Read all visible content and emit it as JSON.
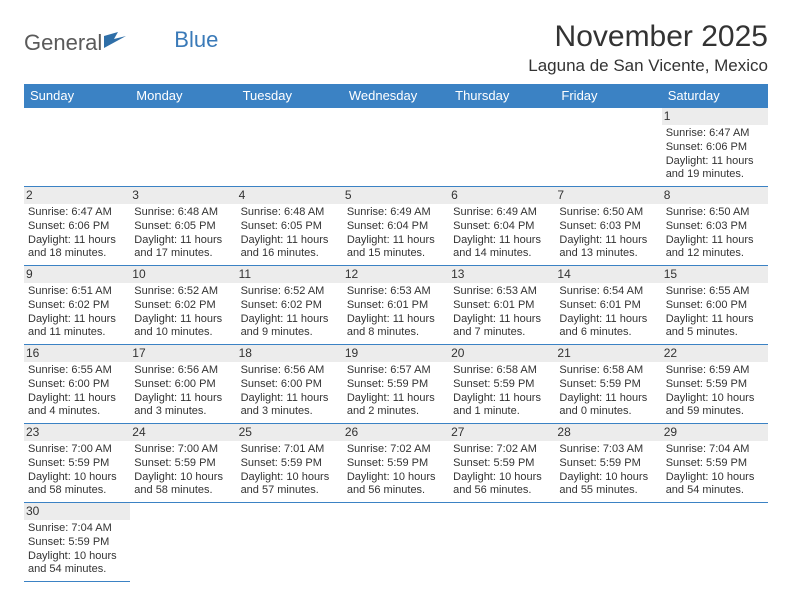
{
  "logo": {
    "text1": "General",
    "text2": "Blue"
  },
  "title": "November 2025",
  "location": "Laguna de San Vicente, Mexico",
  "colors": {
    "header_bg": "#3b82c4",
    "header_text": "#ffffff",
    "border": "#3b82c4",
    "daynum_bg": "#ececec",
    "logo_gray": "#5a5a5a",
    "logo_blue": "#3a7ab8"
  },
  "weekdays": [
    "Sunday",
    "Monday",
    "Tuesday",
    "Wednesday",
    "Thursday",
    "Friday",
    "Saturday"
  ],
  "weeks": [
    [
      null,
      null,
      null,
      null,
      null,
      null,
      {
        "n": "1",
        "sr": "Sunrise: 6:47 AM",
        "ss": "Sunset: 6:06 PM",
        "d1": "Daylight: 11 hours",
        "d2": "and 19 minutes."
      }
    ],
    [
      {
        "n": "2",
        "sr": "Sunrise: 6:47 AM",
        "ss": "Sunset: 6:06 PM",
        "d1": "Daylight: 11 hours",
        "d2": "and 18 minutes."
      },
      {
        "n": "3",
        "sr": "Sunrise: 6:48 AM",
        "ss": "Sunset: 6:05 PM",
        "d1": "Daylight: 11 hours",
        "d2": "and 17 minutes."
      },
      {
        "n": "4",
        "sr": "Sunrise: 6:48 AM",
        "ss": "Sunset: 6:05 PM",
        "d1": "Daylight: 11 hours",
        "d2": "and 16 minutes."
      },
      {
        "n": "5",
        "sr": "Sunrise: 6:49 AM",
        "ss": "Sunset: 6:04 PM",
        "d1": "Daylight: 11 hours",
        "d2": "and 15 minutes."
      },
      {
        "n": "6",
        "sr": "Sunrise: 6:49 AM",
        "ss": "Sunset: 6:04 PM",
        "d1": "Daylight: 11 hours",
        "d2": "and 14 minutes."
      },
      {
        "n": "7",
        "sr": "Sunrise: 6:50 AM",
        "ss": "Sunset: 6:03 PM",
        "d1": "Daylight: 11 hours",
        "d2": "and 13 minutes."
      },
      {
        "n": "8",
        "sr": "Sunrise: 6:50 AM",
        "ss": "Sunset: 6:03 PM",
        "d1": "Daylight: 11 hours",
        "d2": "and 12 minutes."
      }
    ],
    [
      {
        "n": "9",
        "sr": "Sunrise: 6:51 AM",
        "ss": "Sunset: 6:02 PM",
        "d1": "Daylight: 11 hours",
        "d2": "and 11 minutes."
      },
      {
        "n": "10",
        "sr": "Sunrise: 6:52 AM",
        "ss": "Sunset: 6:02 PM",
        "d1": "Daylight: 11 hours",
        "d2": "and 10 minutes."
      },
      {
        "n": "11",
        "sr": "Sunrise: 6:52 AM",
        "ss": "Sunset: 6:02 PM",
        "d1": "Daylight: 11 hours",
        "d2": "and 9 minutes."
      },
      {
        "n": "12",
        "sr": "Sunrise: 6:53 AM",
        "ss": "Sunset: 6:01 PM",
        "d1": "Daylight: 11 hours",
        "d2": "and 8 minutes."
      },
      {
        "n": "13",
        "sr": "Sunrise: 6:53 AM",
        "ss": "Sunset: 6:01 PM",
        "d1": "Daylight: 11 hours",
        "d2": "and 7 minutes."
      },
      {
        "n": "14",
        "sr": "Sunrise: 6:54 AM",
        "ss": "Sunset: 6:01 PM",
        "d1": "Daylight: 11 hours",
        "d2": "and 6 minutes."
      },
      {
        "n": "15",
        "sr": "Sunrise: 6:55 AM",
        "ss": "Sunset: 6:00 PM",
        "d1": "Daylight: 11 hours",
        "d2": "and 5 minutes."
      }
    ],
    [
      {
        "n": "16",
        "sr": "Sunrise: 6:55 AM",
        "ss": "Sunset: 6:00 PM",
        "d1": "Daylight: 11 hours",
        "d2": "and 4 minutes."
      },
      {
        "n": "17",
        "sr": "Sunrise: 6:56 AM",
        "ss": "Sunset: 6:00 PM",
        "d1": "Daylight: 11 hours",
        "d2": "and 3 minutes."
      },
      {
        "n": "18",
        "sr": "Sunrise: 6:56 AM",
        "ss": "Sunset: 6:00 PM",
        "d1": "Daylight: 11 hours",
        "d2": "and 3 minutes."
      },
      {
        "n": "19",
        "sr": "Sunrise: 6:57 AM",
        "ss": "Sunset: 5:59 PM",
        "d1": "Daylight: 11 hours",
        "d2": "and 2 minutes."
      },
      {
        "n": "20",
        "sr": "Sunrise: 6:58 AM",
        "ss": "Sunset: 5:59 PM",
        "d1": "Daylight: 11 hours",
        "d2": "and 1 minute."
      },
      {
        "n": "21",
        "sr": "Sunrise: 6:58 AM",
        "ss": "Sunset: 5:59 PM",
        "d1": "Daylight: 11 hours",
        "d2": "and 0 minutes."
      },
      {
        "n": "22",
        "sr": "Sunrise: 6:59 AM",
        "ss": "Sunset: 5:59 PM",
        "d1": "Daylight: 10 hours",
        "d2": "and 59 minutes."
      }
    ],
    [
      {
        "n": "23",
        "sr": "Sunrise: 7:00 AM",
        "ss": "Sunset: 5:59 PM",
        "d1": "Daylight: 10 hours",
        "d2": "and 58 minutes."
      },
      {
        "n": "24",
        "sr": "Sunrise: 7:00 AM",
        "ss": "Sunset: 5:59 PM",
        "d1": "Daylight: 10 hours",
        "d2": "and 58 minutes."
      },
      {
        "n": "25",
        "sr": "Sunrise: 7:01 AM",
        "ss": "Sunset: 5:59 PM",
        "d1": "Daylight: 10 hours",
        "d2": "and 57 minutes."
      },
      {
        "n": "26",
        "sr": "Sunrise: 7:02 AM",
        "ss": "Sunset: 5:59 PM",
        "d1": "Daylight: 10 hours",
        "d2": "and 56 minutes."
      },
      {
        "n": "27",
        "sr": "Sunrise: 7:02 AM",
        "ss": "Sunset: 5:59 PM",
        "d1": "Daylight: 10 hours",
        "d2": "and 56 minutes."
      },
      {
        "n": "28",
        "sr": "Sunrise: 7:03 AM",
        "ss": "Sunset: 5:59 PM",
        "d1": "Daylight: 10 hours",
        "d2": "and 55 minutes."
      },
      {
        "n": "29",
        "sr": "Sunrise: 7:04 AM",
        "ss": "Sunset: 5:59 PM",
        "d1": "Daylight: 10 hours",
        "d2": "and 54 minutes."
      }
    ],
    [
      {
        "n": "30",
        "sr": "Sunrise: 7:04 AM",
        "ss": "Sunset: 5:59 PM",
        "d1": "Daylight: 10 hours",
        "d2": "and 54 minutes."
      },
      null,
      null,
      null,
      null,
      null,
      null
    ]
  ]
}
